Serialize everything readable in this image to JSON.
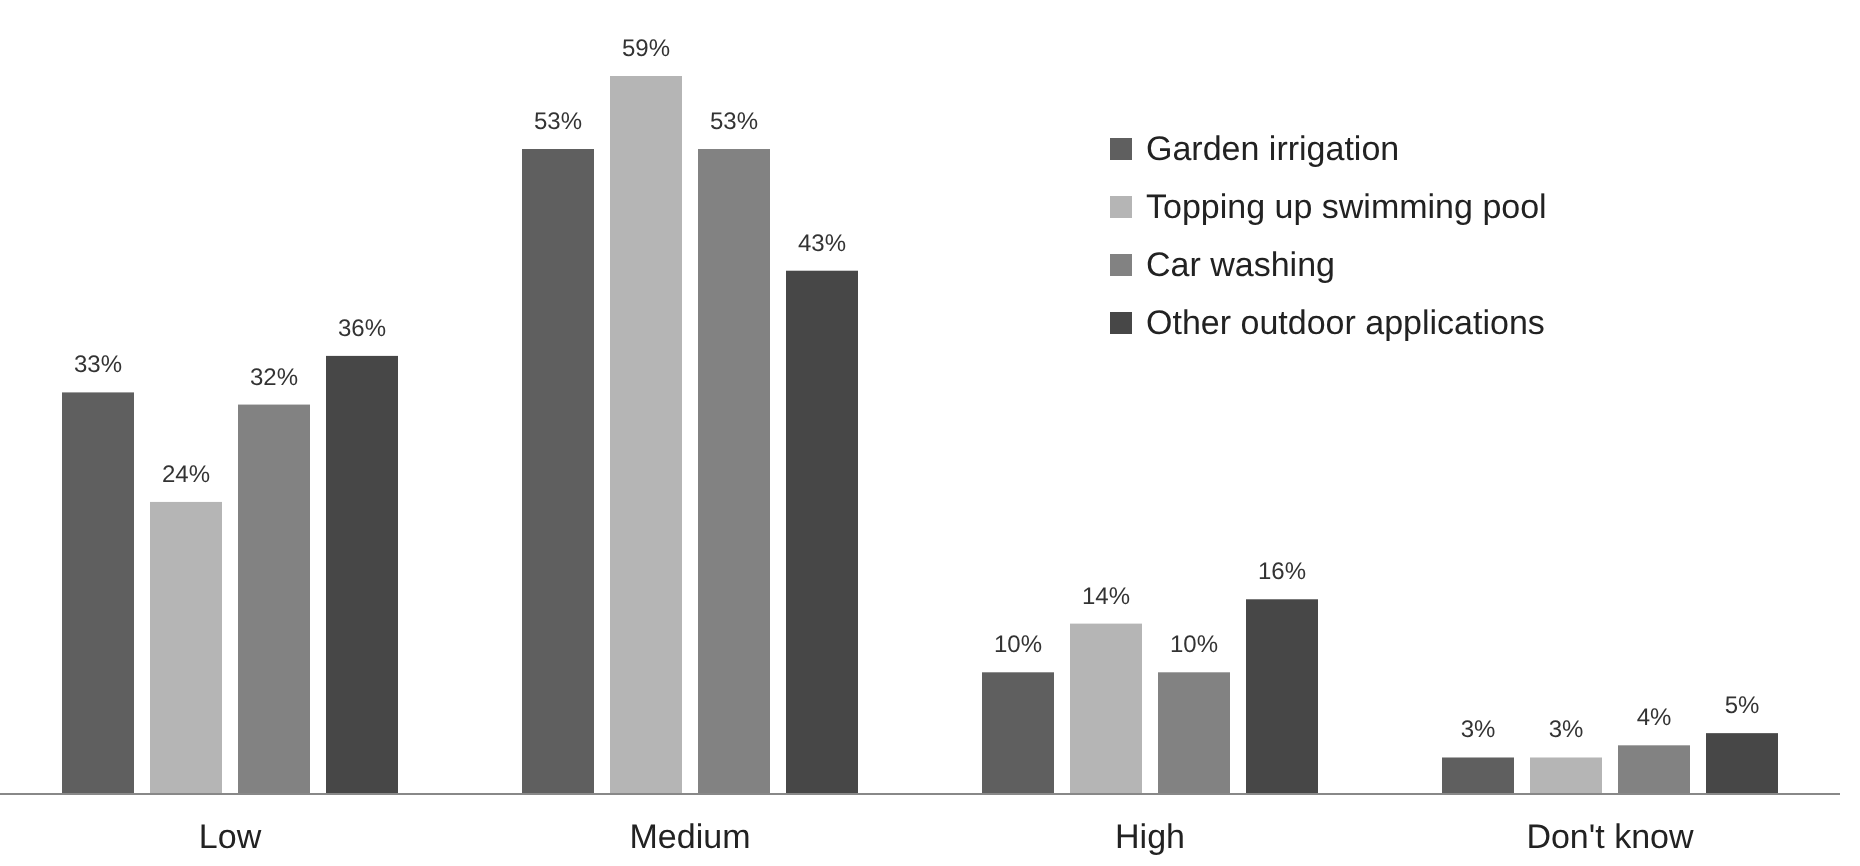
{
  "chart_data": {
    "type": "bar",
    "categories": [
      "Low",
      "Medium",
      "High",
      "Don't know"
    ],
    "series": [
      {
        "name": "Garden irrigation",
        "color": "#5f5f5f",
        "values": [
          33,
          53,
          10,
          3
        ],
        "value_labels": [
          "33%",
          "53%",
          "10%",
          "3%"
        ]
      },
      {
        "name": "Topping up swimming pool",
        "color": "#b5b5b5",
        "values": [
          24,
          59,
          14,
          3
        ],
        "value_labels": [
          "24%",
          "59%",
          "14%",
          "3%"
        ]
      },
      {
        "name": "Car washing",
        "color": "#828282",
        "values": [
          32,
          53,
          10,
          4
        ],
        "value_labels": [
          "32%",
          "53%",
          "10%",
          "4%"
        ]
      },
      {
        "name": "Other outdoor applications",
        "color": "#474747",
        "values": [
          36,
          43,
          16,
          5
        ],
        "value_labels": [
          "36%",
          "43%",
          "16%",
          "5%"
        ]
      }
    ],
    "legend": "top right"
  }
}
